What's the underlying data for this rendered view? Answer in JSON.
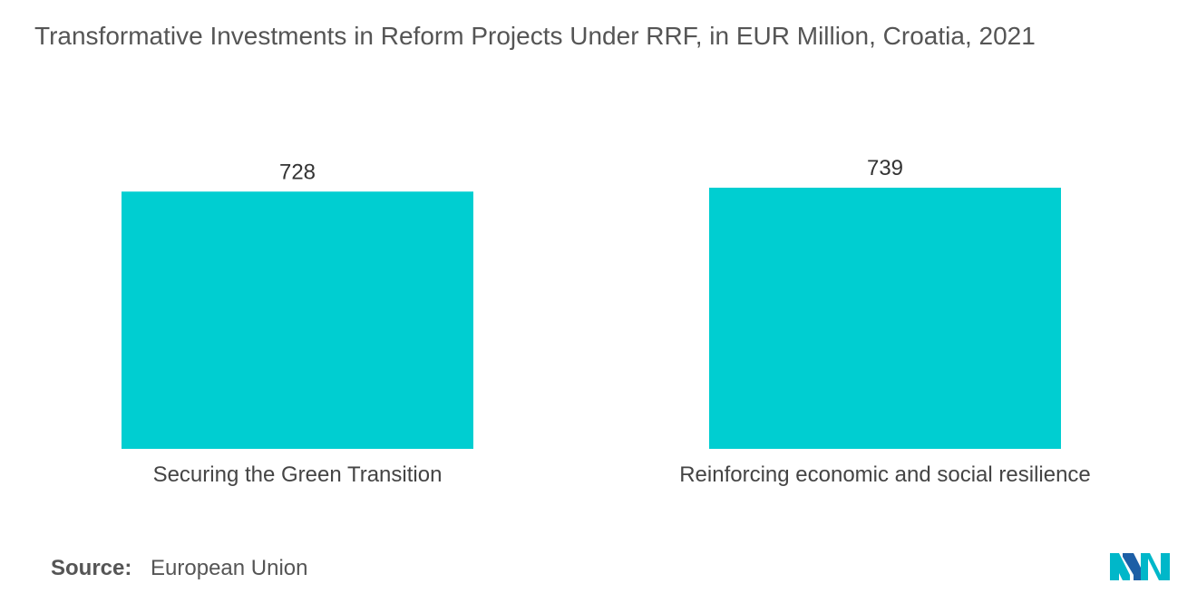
{
  "title": "Transformative Investments in Reform Projects Under RRF, in EUR Million, Croatia, 2021",
  "source": {
    "label": "Source:",
    "value": "European Union"
  },
  "logo": {
    "icon": "mordor-intelligence-logo-icon",
    "colors": [
      "#00b7c9",
      "#1d5fa6"
    ]
  },
  "colors": {
    "bar": "#00ced1"
  },
  "chart_data": {
    "type": "bar",
    "title": "Transformative Investments in Reform Projects Under RRF, in EUR Million, Croatia, 2021",
    "categories": [
      "Securing the Green Transition",
      "Reinforcing economic and social resilience"
    ],
    "values": [
      728,
      739
    ],
    "value_labels": [
      "728",
      "739"
    ],
    "xlabel": "",
    "ylabel": "",
    "ylim": [
      0,
      739
    ],
    "grid": false,
    "legend": "none"
  }
}
